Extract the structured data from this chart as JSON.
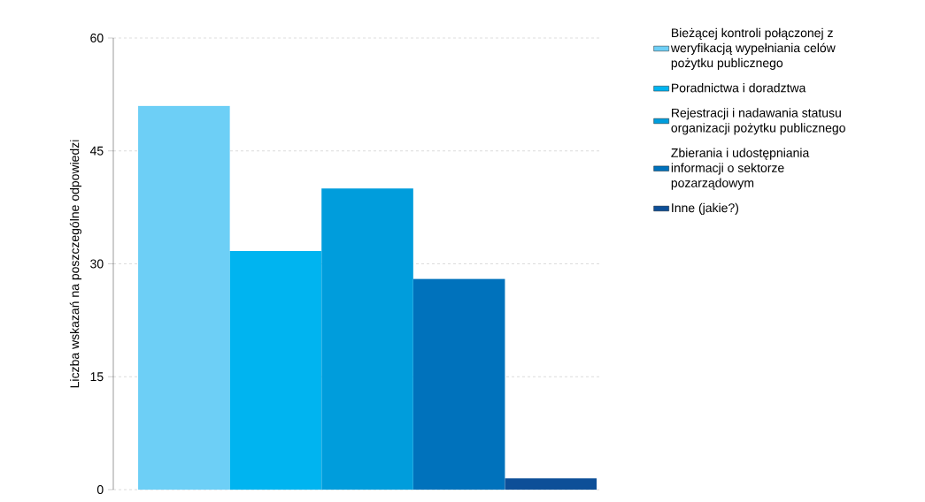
{
  "chart_data": {
    "type": "bar",
    "ylabel": "Liczba wskazań na poszczególne odpowiedzi",
    "categories": [
      null
    ],
    "series": [
      {
        "name": "Bieżącej kontroli połączonej z weryfikacją wypełniania celów pożytku publicznego",
        "color": "#6dcff6",
        "values": [
          51
        ]
      },
      {
        "name": "Poradnictwa i doradztwa",
        "color": "#00b4f0",
        "values": [
          31.7
        ]
      },
      {
        "name": "Rejestracji i nadawania statusu organizacji pożytku publicznego",
        "color": "#009ddc",
        "values": [
          40
        ]
      },
      {
        "name": "Zbierania i udostępniania informacji o sektorze pozarządowym",
        "color": "#0072bc",
        "values": [
          28
        ]
      },
      {
        "name": "Inne (jakie?)",
        "color": "#0d4f98",
        "values": [
          1.5
        ]
      }
    ],
    "ylim": [
      0,
      60
    ],
    "yticks": [
      0,
      15,
      30,
      45,
      60
    ],
    "grid": "y",
    "legend": "top right"
  }
}
